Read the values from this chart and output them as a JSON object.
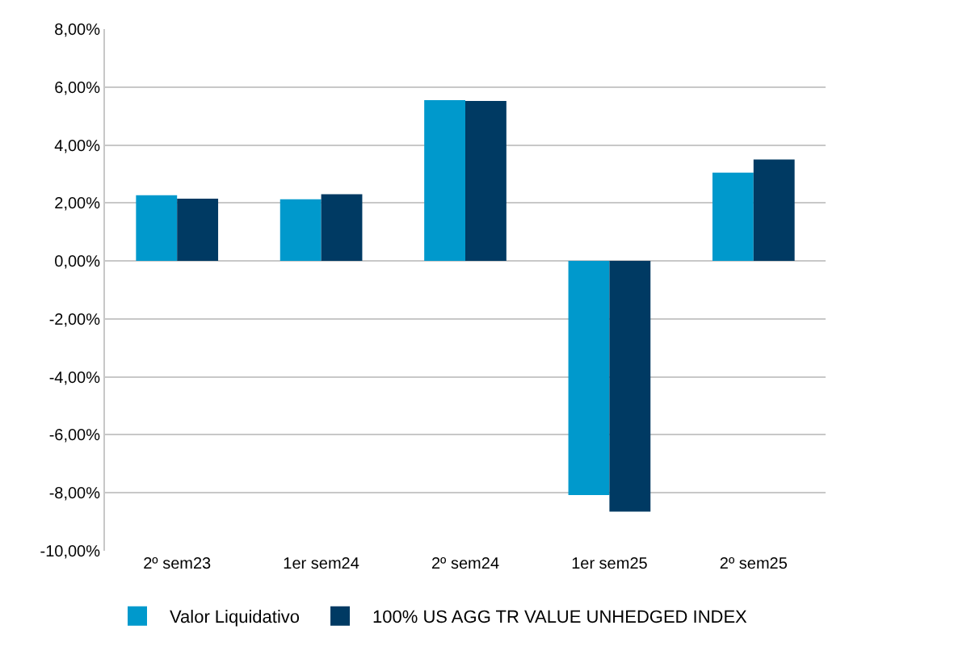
{
  "chart_data": {
    "type": "bar",
    "categories": [
      "2º sem23",
      "1er sem24",
      "2º sem24",
      "1er sem25",
      "2º sem25"
    ],
    "series": [
      {
        "name": "Valor Liquidativo",
        "color": "#0099cc",
        "values": [
          2.27,
          2.13,
          5.55,
          -8.08,
          3.05
        ]
      },
      {
        "name": "100% US AGG TR VALUE UNHEDGED INDEX",
        "color": "#003a63",
        "values": [
          2.15,
          2.3,
          5.52,
          -8.65,
          3.5
        ]
      }
    ],
    "ylim": [
      -10,
      8
    ],
    "yticks": [
      {
        "value": -10,
        "label": "-10,00%"
      },
      {
        "value": -8,
        "label": "-8,00%"
      },
      {
        "value": -6,
        "label": "-6,00%"
      },
      {
        "value": -4,
        "label": "-4,00%"
      },
      {
        "value": -2,
        "label": "-2,00%"
      },
      {
        "value": 0,
        "label": "0,00%"
      },
      {
        "value": 2,
        "label": "2,00%"
      },
      {
        "value": 4,
        "label": "4,00%"
      },
      {
        "value": 6,
        "label": "6,00%"
      },
      {
        "value": 8,
        "label": "8,00%"
      }
    ],
    "grid": "y",
    "legend": "bottom left"
  }
}
